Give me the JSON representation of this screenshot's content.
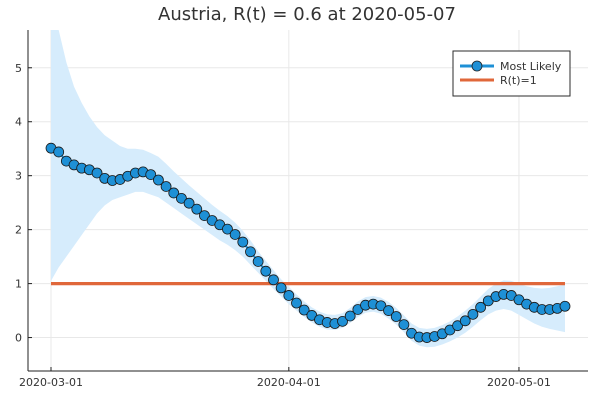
{
  "chart_data": {
    "type": "line",
    "title": "Austria, R(t) = 0.6 at 2020-05-07",
    "xlabel": "",
    "ylabel": "",
    "x_start": "2020-03-01",
    "x_ticks": [
      "2020-03-01",
      "2020-04-01",
      "2020-05-01"
    ],
    "y_ticks": [
      0,
      1,
      2,
      3,
      4,
      5
    ],
    "xlim": [
      "2020-02-27",
      "2020-05-10"
    ],
    "ylim": [
      -0.62,
      5.7
    ],
    "grid": true,
    "legend_position": "top-right",
    "series": [
      {
        "name": "Most Likely",
        "color": "#1e90d6",
        "marker": "circle",
        "x": [
          "2020-03-01",
          "2020-03-02",
          "2020-03-03",
          "2020-03-04",
          "2020-03-05",
          "2020-03-06",
          "2020-03-07",
          "2020-03-08",
          "2020-03-09",
          "2020-03-10",
          "2020-03-11",
          "2020-03-12",
          "2020-03-13",
          "2020-03-14",
          "2020-03-15",
          "2020-03-16",
          "2020-03-17",
          "2020-03-18",
          "2020-03-19",
          "2020-03-20",
          "2020-03-21",
          "2020-03-22",
          "2020-03-23",
          "2020-03-24",
          "2020-03-25",
          "2020-03-26",
          "2020-03-27",
          "2020-03-28",
          "2020-03-29",
          "2020-03-30",
          "2020-03-31",
          "2020-04-01",
          "2020-04-02",
          "2020-04-03",
          "2020-04-04",
          "2020-04-05",
          "2020-04-06",
          "2020-04-07",
          "2020-04-08",
          "2020-04-09",
          "2020-04-10",
          "2020-04-11",
          "2020-04-12",
          "2020-04-13",
          "2020-04-14",
          "2020-04-15",
          "2020-04-16",
          "2020-04-17",
          "2020-04-18",
          "2020-04-19",
          "2020-04-20",
          "2020-04-21",
          "2020-04-22",
          "2020-04-23",
          "2020-04-24",
          "2020-04-25",
          "2020-04-26",
          "2020-04-27",
          "2020-04-28",
          "2020-04-29",
          "2020-04-30",
          "2020-05-01",
          "2020-05-02",
          "2020-05-03",
          "2020-05-04",
          "2020-05-05",
          "2020-05-06",
          "2020-05-07"
        ],
        "values": [
          3.51,
          3.44,
          3.27,
          3.2,
          3.14,
          3.11,
          3.05,
          2.95,
          2.91,
          2.93,
          2.99,
          3.05,
          3.07,
          3.02,
          2.92,
          2.8,
          2.68,
          2.58,
          2.49,
          2.38,
          2.26,
          2.17,
          2.09,
          2.01,
          1.91,
          1.77,
          1.59,
          1.41,
          1.23,
          1.07,
          0.92,
          0.78,
          0.64,
          0.51,
          0.41,
          0.33,
          0.28,
          0.26,
          0.3,
          0.4,
          0.52,
          0.6,
          0.62,
          0.59,
          0.5,
          0.39,
          0.24,
          0.08,
          0.01,
          0.0,
          0.02,
          0.07,
          0.14,
          0.22,
          0.31,
          0.43,
          0.56,
          0.68,
          0.76,
          0.8,
          0.78,
          0.7,
          0.62,
          0.56,
          0.52,
          0.52,
          0.54,
          0.58
        ]
      },
      {
        "name": "R(t)=1",
        "color": "#e0673a",
        "values": [
          1,
          1
        ]
      }
    ],
    "band": {
      "color": "#d6ecfc",
      "lower": [
        1.05,
        1.3,
        1.5,
        1.7,
        1.9,
        2.1,
        2.3,
        2.45,
        2.55,
        2.6,
        2.65,
        2.7,
        2.7,
        2.65,
        2.6,
        2.5,
        2.4,
        2.3,
        2.2,
        2.1,
        2.0,
        1.9,
        1.8,
        1.72,
        1.62,
        1.5,
        1.35,
        1.2,
        1.05,
        0.9,
        0.76,
        0.62,
        0.5,
        0.38,
        0.28,
        0.2,
        0.15,
        0.14,
        0.18,
        0.27,
        0.38,
        0.46,
        0.48,
        0.44,
        0.35,
        0.24,
        0.1,
        -0.06,
        -0.15,
        -0.18,
        -0.17,
        -0.13,
        -0.07,
        0.0,
        0.09,
        0.2,
        0.32,
        0.43,
        0.5,
        0.53,
        0.5,
        0.42,
        0.34,
        0.26,
        0.2,
        0.16,
        0.13,
        0.1
      ],
      "upper": [
        5.7,
        5.7,
        5.1,
        4.65,
        4.35,
        4.1,
        3.9,
        3.75,
        3.65,
        3.55,
        3.5,
        3.5,
        3.48,
        3.42,
        3.35,
        3.22,
        3.08,
        2.95,
        2.82,
        2.7,
        2.58,
        2.46,
        2.35,
        2.25,
        2.13,
        1.98,
        1.8,
        1.6,
        1.42,
        1.25,
        1.08,
        0.94,
        0.8,
        0.67,
        0.56,
        0.48,
        0.43,
        0.42,
        0.45,
        0.55,
        0.67,
        0.75,
        0.77,
        0.74,
        0.66,
        0.55,
        0.41,
        0.26,
        0.18,
        0.16,
        0.18,
        0.23,
        0.3,
        0.39,
        0.5,
        0.62,
        0.76,
        0.9,
        1.0,
        1.06,
        1.05,
        1.0,
        0.95,
        0.92,
        0.91,
        0.92,
        0.95,
        0.98
      ]
    }
  }
}
